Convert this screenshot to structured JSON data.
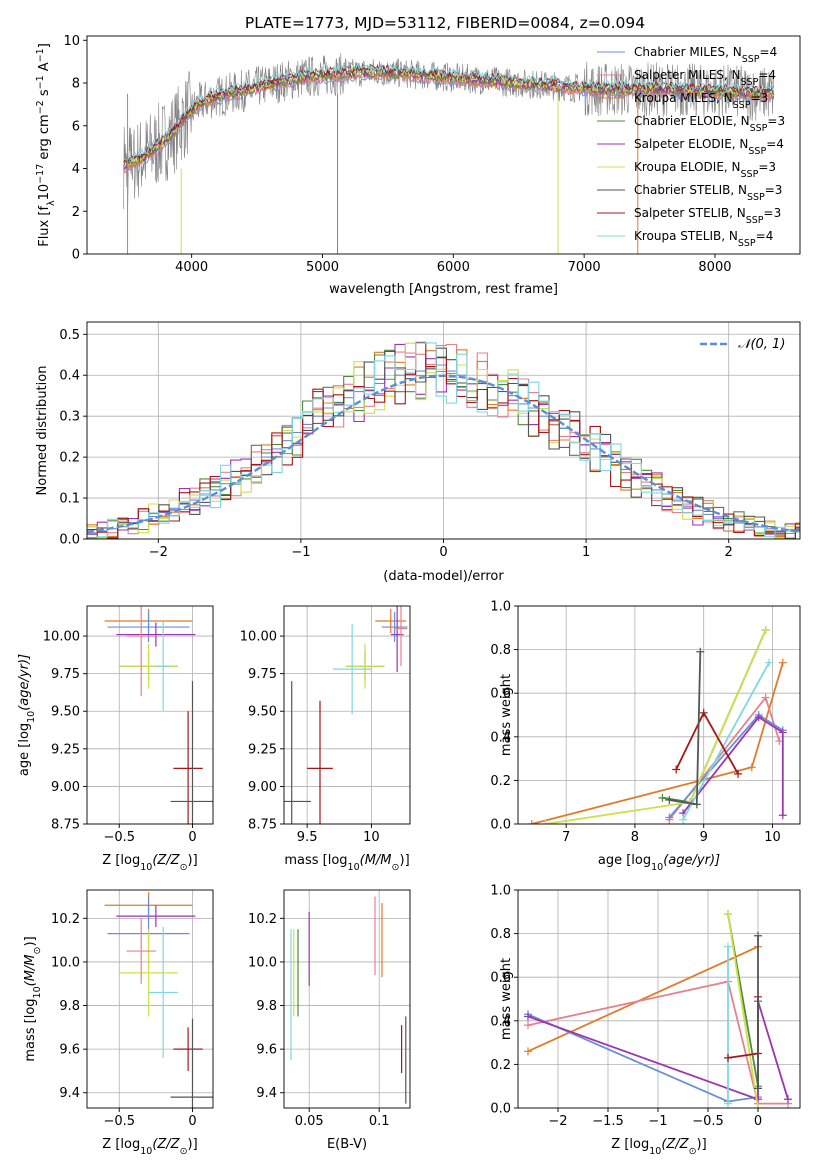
{
  "title": "PLATE=1773, MJD=53112, FIBERID=0084, z=0.094",
  "colors": {
    "chabrier_miles": "#6a8fd8",
    "salpeter_miles": "#e8808c",
    "kroupa_miles": "#e07b29",
    "chabrier_elodie": "#4e8a3c",
    "salpeter_elodie": "#9b35b0",
    "kroupa_elodie": "#cfe04a",
    "chabrier_stelib": "#555555",
    "salpeter_stelib": "#a31818",
    "kroupa_stelib": "#7fd8e0",
    "gaussian": "#5b8fd4"
  },
  "legend": [
    {
      "key": "chabrier_miles",
      "pre": "Chabrier MILES, N",
      "sub": "SSP",
      "post": "=4"
    },
    {
      "key": "salpeter_miles",
      "pre": "Salpeter MILES, N",
      "sub": "SSP",
      "post": "=4"
    },
    {
      "key": "kroupa_miles",
      "pre": "Kroupa MILES, N",
      "sub": "SSP",
      "post": "=3"
    },
    {
      "key": "chabrier_elodie",
      "pre": "Chabrier ELODIE, N",
      "sub": "SSP",
      "post": "=3"
    },
    {
      "key": "salpeter_elodie",
      "pre": "Salpeter ELODIE, N",
      "sub": "SSP",
      "post": "=4"
    },
    {
      "key": "kroupa_elodie",
      "pre": "Kroupa ELODIE, N",
      "sub": "SSP",
      "post": "=3"
    },
    {
      "key": "chabrier_stelib",
      "pre": "Chabrier STELIB, N",
      "sub": "SSP",
      "post": "=3"
    },
    {
      "key": "salpeter_stelib",
      "pre": "Salpeter STELIB, N",
      "sub": "SSP",
      "post": "=3"
    },
    {
      "key": "kroupa_stelib",
      "pre": "Kroupa STELIB, N",
      "sub": "SSP",
      "post": "=4"
    }
  ],
  "chart_data": [
    {
      "id": "spectrum",
      "type": "line",
      "xlabel": "wavelength [Angstrom, rest frame]",
      "ylabel_pre": "Flux [f",
      "ylabel_sub": "λ",
      "ylabel_mid": "10",
      "ylabel_sup1": "−17",
      "ylabel_mid2": " erg cm",
      "ylabel_sup2": "−2",
      "ylabel_mid3": " s",
      "ylabel_sup3": "−1",
      "ylabel_mid4": " A",
      "ylabel_sup4": "−1",
      "ylabel_end": "]",
      "xlim": [
        3200,
        8650
      ],
      "ylim": [
        0,
        10.2
      ],
      "xticks": [
        4000,
        5000,
        6000,
        7000,
        8000
      ],
      "yticks": [
        0,
        2,
        4,
        6,
        8,
        10
      ],
      "continuum": [
        [
          3480,
          4.1
        ],
        [
          3550,
          4.3
        ],
        [
          3650,
          4.6
        ],
        [
          3750,
          5.1
        ],
        [
          3850,
          5.6
        ],
        [
          3950,
          6.4
        ],
        [
          4050,
          7.0
        ],
        [
          4150,
          7.3
        ],
        [
          4300,
          7.5
        ],
        [
          4500,
          7.8
        ],
        [
          4700,
          8.1
        ],
        [
          4900,
          8.3
        ],
        [
          5100,
          8.4
        ],
        [
          5300,
          8.5
        ],
        [
          5500,
          8.5
        ],
        [
          5700,
          8.4
        ],
        [
          5900,
          8.3
        ],
        [
          6100,
          8.2
        ],
        [
          6300,
          8.1
        ],
        [
          6500,
          8.0
        ],
        [
          6700,
          7.9
        ],
        [
          6900,
          7.8
        ],
        [
          7100,
          7.7
        ],
        [
          7300,
          7.7
        ],
        [
          7500,
          7.7
        ],
        [
          7700,
          7.7
        ],
        [
          7900,
          7.6
        ],
        [
          8100,
          7.6
        ],
        [
          8300,
          7.5
        ],
        [
          8450,
          7.5
        ]
      ]
    },
    {
      "id": "residuals",
      "type": "histogram",
      "xlabel": "(data-model)/error",
      "ylabel": "Normed distribution",
      "xlim": [
        -2.5,
        2.5
      ],
      "ylim": [
        0,
        0.53
      ],
      "xticks": [
        -2,
        -1,
        0,
        1,
        2
      ],
      "yticks": [
        0.0,
        0.1,
        0.2,
        0.3,
        0.4,
        0.5
      ],
      "grid": true,
      "legend_label": "𝒩(0, 1)",
      "bin_width": 0.1,
      "bin_start": -2.5,
      "hist_key": "chabrier_miles",
      "hist_values": [
        0.015,
        0.02,
        0.025,
        0.03,
        0.04,
        0.045,
        0.055,
        0.065,
        0.075,
        0.085,
        0.095,
        0.11,
        0.12,
        0.135,
        0.15,
        0.165,
        0.18,
        0.2,
        0.22,
        0.24,
        0.26,
        0.28,
        0.3,
        0.32,
        0.33,
        0.345,
        0.36,
        0.37,
        0.38,
        0.39,
        0.4,
        0.405,
        0.41,
        0.42,
        0.425,
        0.41,
        0.4,
        0.39,
        0.38,
        0.37,
        0.36,
        0.35,
        0.33,
        0.32,
        0.3,
        0.28,
        0.27,
        0.25,
        0.23,
        0.22,
        0.2,
        0.18,
        0.17,
        0.15,
        0.13,
        0.12,
        0.11,
        0.095,
        0.08,
        0.07,
        0.06,
        0.05,
        0.045,
        0.04,
        0.035,
        0.03,
        0.025,
        0.02,
        0.02,
        0.02
      ]
    },
    {
      "id": "age_vs_z",
      "type": "errorbar",
      "xlabel_pre": "Z [log",
      "xlabel_sub": "10",
      "xlabel_post": "(Z/Z",
      "xlabel_sub2": "⊙",
      "xlabel_end": ")]",
      "ylabel_pre": "age  [log",
      "ylabel_sub": "10",
      "ylabel_post": "(age/yr)]",
      "xlim": [
        -0.72,
        0.14
      ],
      "ylim": [
        8.75,
        10.2
      ],
      "xticks": [
        -0.5,
        0.0
      ],
      "yticks": [
        8.75,
        9.0,
        9.25,
        9.5,
        9.75,
        10.0
      ],
      "grid": true,
      "points": [
        {
          "key": "kroupa_miles",
          "x": -0.3,
          "xerr": 0.3,
          "y": 10.1,
          "yerr": 0.08
        },
        {
          "key": "chabrier_miles",
          "x": -0.3,
          "xerr": 0.28,
          "y": 10.06,
          "yerr": 0.1
        },
        {
          "key": "salpeter_elodie",
          "x": -0.25,
          "xerr": 0.27,
          "y": 10.01,
          "yerr": 0.08
        },
        {
          "key": "chabrier_elodie",
          "x": -0.3,
          "xerr": 0.2,
          "y": 9.8,
          "yerr": 0.1
        },
        {
          "key": "kroupa_elodie",
          "x": -0.3,
          "xerr": 0.2,
          "y": 9.8,
          "yerr": 0.15
        },
        {
          "key": "salpeter_miles",
          "x": -0.35,
          "xerr": 0.1,
          "y": 10.0,
          "yerr": 0.4
        },
        {
          "key": "kroupa_stelib",
          "x": -0.2,
          "xerr": 0.05,
          "y": 9.8,
          "yerr": 0.3
        },
        {
          "key": "salpeter_stelib",
          "x": -0.03,
          "xerr": 0.1,
          "y": 9.12,
          "yerr": 0.38
        },
        {
          "key": "chabrier_stelib",
          "x": 0.0,
          "xerr": 0.15,
          "y": 8.9,
          "yerr": 0.8
        }
      ]
    },
    {
      "id": "age_vs_mass",
      "type": "errorbar",
      "xlabel_pre": "mass [log",
      "xlabel_sub": "10",
      "xlabel_post": "(M/M",
      "xlabel_sub2": "⊙",
      "xlabel_end": ")]",
      "xlim": [
        9.32,
        10.3
      ],
      "ylim": [
        8.75,
        10.2
      ],
      "xticks": [
        9.5,
        10.0
      ],
      "yticks": [
        8.75,
        9.0,
        9.25,
        9.5,
        9.75,
        10.0
      ],
      "grid": true,
      "points": [
        {
          "key": "kroupa_miles",
          "x": 10.15,
          "xerr": 0.12,
          "y": 10.1,
          "yerr": 0.08
        },
        {
          "key": "chabrier_miles",
          "x": 10.18,
          "xerr": 0.1,
          "y": 10.06,
          "yerr": 0.1
        },
        {
          "key": "salpeter_elodie",
          "x": 10.2,
          "xerr": 0.05,
          "y": 10.01,
          "yerr": 0.25
        },
        {
          "key": "chabrier_elodie",
          "x": 9.95,
          "xerr": 0.15,
          "y": 9.8,
          "yerr": 0.1
        },
        {
          "key": "kroupa_elodie",
          "x": 9.95,
          "xerr": 0.15,
          "y": 9.8,
          "yerr": 0.15
        },
        {
          "key": "salpeter_miles",
          "x": 10.23,
          "xerr": 0.05,
          "y": 10.05,
          "yerr": 0.25
        },
        {
          "key": "kroupa_stelib",
          "x": 9.85,
          "xerr": 0.15,
          "y": 9.78,
          "yerr": 0.3
        },
        {
          "key": "salpeter_stelib",
          "x": 9.6,
          "xerr": 0.1,
          "y": 9.12,
          "yerr": 0.45
        },
        {
          "key": "chabrier_stelib",
          "x": 9.38,
          "xerr": 0.15,
          "y": 8.9,
          "yerr": 0.8
        }
      ]
    },
    {
      "id": "weight_vs_age",
      "type": "line",
      "xlabel_pre": "age  [log",
      "xlabel_sub": "10",
      "xlabel_post": "(age/yr)]",
      "ylabel": "mass weight",
      "xlim": [
        6.3,
        10.4
      ],
      "ylim": [
        0,
        1.0
      ],
      "xticks": [
        7,
        8,
        9,
        10
      ],
      "yticks": [
        0.0,
        0.2,
        0.4,
        0.6,
        0.8,
        1.0
      ],
      "grid": true,
      "series": [
        {
          "key": "kroupa_miles",
          "points": [
            [
              6.5,
              0.0
            ],
            [
              9.7,
              0.26
            ],
            [
              10.15,
              0.74
            ]
          ]
        },
        {
          "key": "salpeter_miles",
          "points": [
            [
              8.5,
              0.02
            ],
            [
              9.9,
              0.58
            ],
            [
              10.1,
              0.38
            ]
          ]
        },
        {
          "key": "chabrier_miles",
          "points": [
            [
              8.5,
              0.03
            ],
            [
              9.8,
              0.5
            ],
            [
              10.15,
              0.43
            ]
          ]
        },
        {
          "key": "chabrier_elodie",
          "points": [
            [
              8.4,
              0.12
            ],
            [
              8.8,
              0.1
            ],
            [
              9.9,
              0.89
            ]
          ]
        },
        {
          "key": "kroupa_elodie",
          "points": [
            [
              6.7,
              0.0
            ],
            [
              8.8,
              0.1
            ],
            [
              9.9,
              0.89
            ]
          ]
        },
        {
          "key": "salpeter_elodie",
          "points": [
            [
              8.7,
              0.05
            ],
            [
              9.8,
              0.49
            ],
            [
              10.15,
              0.42
            ],
            [
              10.15,
              0.04
            ]
          ]
        },
        {
          "key": "kroupa_stelib",
          "points": [
            [
              8.7,
              0.02
            ],
            [
              9.95,
              0.74
            ]
          ]
        },
        {
          "key": "salpeter_stelib",
          "points": [
            [
              8.6,
              0.25
            ],
            [
              9.0,
              0.51
            ],
            [
              9.5,
              0.23
            ]
          ]
        },
        {
          "key": "chabrier_stelib",
          "points": [
            [
              8.5,
              0.11
            ],
            [
              8.9,
              0.09
            ],
            [
              8.95,
              0.79
            ]
          ]
        }
      ]
    },
    {
      "id": "mass_vs_z",
      "type": "errorbar",
      "xlabel_pre": "Z [log",
      "xlabel_sub": "10",
      "xlabel_post": "(Z/Z",
      "xlabel_sub2": "⊙",
      "xlabel_end": ")]",
      "ylabel_pre": "mass [log",
      "ylabel_sub": "10",
      "ylabel_post": "(M/M",
      "ylabel_sub2": "⊙",
      "ylabel_end": ")]",
      "xlim": [
        -0.72,
        0.14
      ],
      "ylim": [
        9.33,
        10.33
      ],
      "xticks": [
        -0.5,
        0.0
      ],
      "yticks": [
        9.4,
        9.6,
        9.8,
        10.0,
        10.2
      ],
      "grid": true,
      "points": [
        {
          "key": "kroupa_miles",
          "x": -0.3,
          "xerr": 0.3,
          "y": 10.26,
          "yerr": 0.06
        },
        {
          "key": "salpeter_elodie",
          "x": -0.25,
          "xerr": 0.27,
          "y": 10.21,
          "yerr": 0.05
        },
        {
          "key": "chabrier_miles",
          "x": -0.3,
          "xerr": 0.28,
          "y": 10.13,
          "yerr": 0.17
        },
        {
          "key": "kroupa_elodie",
          "x": -0.3,
          "xerr": 0.2,
          "y": 9.95,
          "yerr": 0.2
        },
        {
          "key": "salpeter_miles",
          "x": -0.35,
          "xerr": 0.1,
          "y": 10.05,
          "yerr": 0.15
        },
        {
          "key": "kroupa_stelib",
          "x": -0.2,
          "xerr": 0.1,
          "y": 9.86,
          "yerr": 0.3
        },
        {
          "key": "salpeter_stelib",
          "x": -0.03,
          "xerr": 0.1,
          "y": 9.6,
          "yerr": 0.1
        },
        {
          "key": "chabrier_stelib",
          "x": 0.0,
          "xerr": 0.15,
          "y": 9.38,
          "yerr": 0.36
        }
      ]
    },
    {
      "id": "mass_vs_ebv",
      "type": "errorbar",
      "xlabel": "E(B-V)",
      "xlim": [
        0.032,
        0.122
      ],
      "ylim": [
        9.33,
        10.33
      ],
      "xticks": [
        0.05,
        0.1
      ],
      "yticks": [
        9.4,
        9.6,
        9.8,
        10.0,
        10.2
      ],
      "grid": true,
      "points": [
        {
          "key": "kroupa_stelib",
          "x": 0.037,
          "y": 9.85,
          "yerr": 0.3
        },
        {
          "key": "kroupa_elodie",
          "x": 0.039,
          "y": 9.95,
          "yerr": 0.2
        },
        {
          "key": "chabrier_elodie",
          "x": 0.042,
          "y": 9.95,
          "yerr": 0.2
        },
        {
          "key": "salpeter_elodie",
          "x": 0.05,
          "y": 10.06,
          "yerr": 0.17
        },
        {
          "key": "salpeter_miles",
          "x": 0.097,
          "y": 10.12,
          "yerr": 0.18
        },
        {
          "key": "kroupa_miles",
          "x": 0.102,
          "y": 10.1,
          "yerr": 0.17
        },
        {
          "key": "salpeter_stelib",
          "x": 0.116,
          "y": 9.6,
          "yerr": 0.11
        },
        {
          "key": "chabrier_stelib",
          "x": 0.119,
          "y": 9.55,
          "yerr": 0.2
        }
      ]
    },
    {
      "id": "weight_vs_z",
      "type": "line",
      "xlabel_pre": "Z [log",
      "xlabel_sub": "10",
      "xlabel_post": "(Z/Z",
      "xlabel_sub2": "⊙",
      "xlabel_end": ")]",
      "ylabel": "mass weight",
      "xlim": [
        -2.4,
        0.42
      ],
      "ylim": [
        0,
        1.0
      ],
      "xticks": [
        -2.0,
        -1.5,
        -1.0,
        -0.5,
        0.0
      ],
      "yticks": [
        0.0,
        0.2,
        0.4,
        0.6,
        0.8,
        1.0
      ],
      "grid": true,
      "series": [
        {
          "key": "kroupa_miles",
          "points": [
            [
              -2.3,
              0.26
            ],
            [
              0.0,
              0.74
            ]
          ]
        },
        {
          "key": "salpeter_miles",
          "points": [
            [
              -2.3,
              0.38
            ],
            [
              -0.3,
              0.58
            ],
            [
              0.0,
              0.02
            ],
            [
              0.3,
              0.02
            ]
          ]
        },
        {
          "key": "chabrier_miles",
          "points": [
            [
              -2.3,
              0.43
            ],
            [
              -0.3,
              0.03
            ],
            [
              0.0,
              0.05
            ]
          ]
        },
        {
          "key": "salpeter_elodie",
          "points": [
            [
              -2.3,
              0.42
            ],
            [
              0.0,
              0.04
            ],
            [
              0.0,
              0.49
            ],
            [
              0.3,
              0.04
            ]
          ]
        },
        {
          "key": "chabrier_elodie",
          "points": [
            [
              -0.3,
              0.89
            ],
            [
              0.0,
              0.1
            ]
          ]
        },
        {
          "key": "kroupa_elodie",
          "points": [
            [
              -0.3,
              0.89
            ],
            [
              0.0,
              0.0
            ]
          ]
        },
        {
          "key": "kroupa_stelib",
          "points": [
            [
              -0.3,
              0.74
            ],
            [
              -0.3,
              0.02
            ]
          ]
        },
        {
          "key": "salpeter_stelib",
          "points": [
            [
              -0.3,
              0.23
            ],
            [
              0.0,
              0.25
            ],
            [
              0.0,
              0.51
            ]
          ]
        },
        {
          "key": "chabrier_stelib",
          "points": [
            [
              0.0,
              0.09
            ],
            [
              0.0,
              0.79
            ]
          ]
        }
      ]
    }
  ]
}
